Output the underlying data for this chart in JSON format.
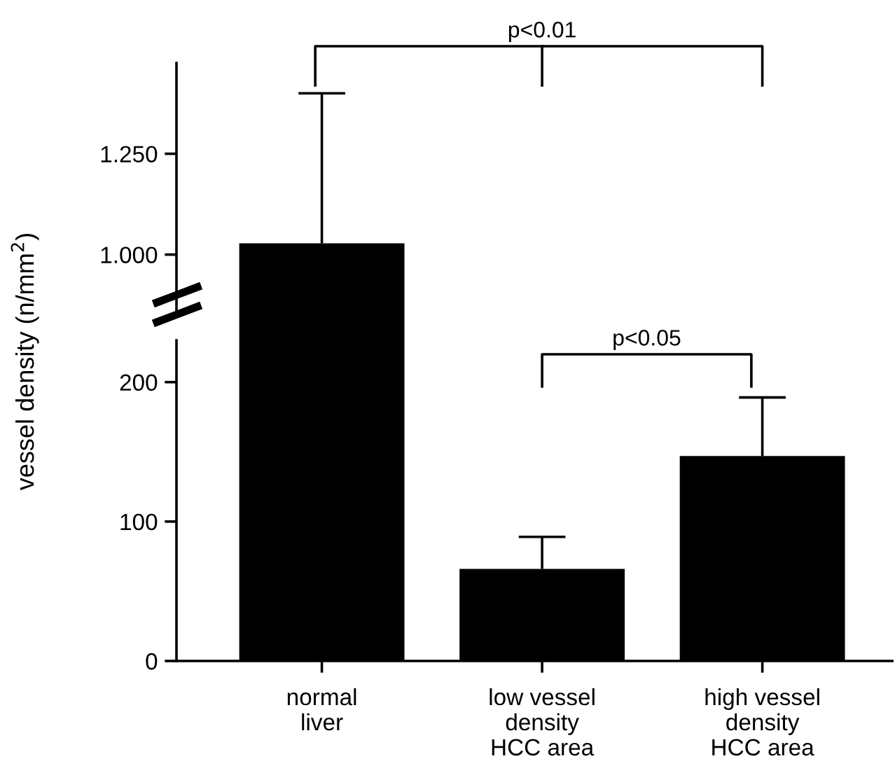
{
  "chart_data": [
    {
      "type": "bar",
      "categories": [
        null,
        null,
        null
      ],
      "values": [
        1.028,
        null,
        null
      ],
      "errors": [
        [
          1.028,
          1.4
        ],
        null,
        null
      ],
      "color": "#000000",
      "ylim": [
        0.85,
        1.475
      ],
      "yticks": [
        {
          "value": 1.0,
          "label": "1.000"
        },
        {
          "value": 1.25,
          "label": "1.250"
        }
      ],
      "tick_labels": "y",
      "grid": false,
      "legend": false,
      "annotations": [
        "p<0.01"
      ]
    },
    {
      "type": "bar",
      "categories": [
        "normal\nliver",
        "low vessel\ndensity\nHCC area",
        "high vessel\ndensity\nHCC area"
      ],
      "values": [
        null,
        66,
        147
      ],
      "errors": [
        null,
        [
          66,
          89
        ],
        [
          147,
          189
        ]
      ],
      "color": "#000000",
      "ylim": [
        0,
        230
      ],
      "yticks": [
        0,
        100,
        200
      ],
      "ylabel": "vessel density (n/mm$^{2}$)",
      "grid": false,
      "legend": false,
      "annotations": [
        "p<0.05"
      ]
    }
  ]
}
